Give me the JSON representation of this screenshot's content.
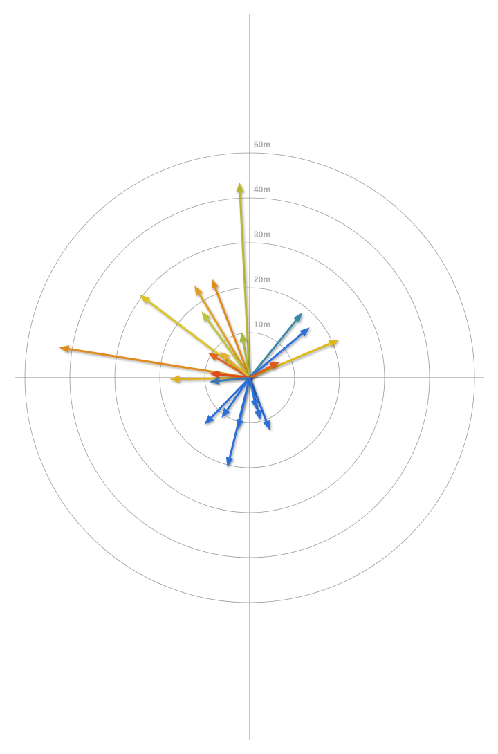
{
  "chart_data": {
    "type": "polar-vector",
    "rlim": [
      0,
      50
    ],
    "rticks": [
      {
        "value": 10,
        "label": "10m"
      },
      {
        "value": 20,
        "label": "20m"
      },
      {
        "value": 30,
        "label": "30m"
      },
      {
        "value": 40,
        "label": "40m"
      },
      {
        "value": 50,
        "label": "50m"
      }
    ],
    "vectors": [
      {
        "angle": 357,
        "distance": 43.5,
        "color": "#b5b82e"
      },
      {
        "angle": 279,
        "distance": 42.9,
        "color": "#e08a1e"
      },
      {
        "angle": 307,
        "distance": 30.6,
        "color": "#d8c428"
      },
      {
        "angle": 329,
        "distance": 23.9,
        "color": "#e0a020"
      },
      {
        "angle": 339,
        "distance": 23.6,
        "color": "#e08a1e"
      },
      {
        "angle": 324,
        "distance": 18.2,
        "color": "#bcc43a"
      },
      {
        "angle": 350,
        "distance": 10.3,
        "color": "#a8b83a"
      },
      {
        "angle": 301,
        "distance": 10.8,
        "color": "#e0661e"
      },
      {
        "angle": 311,
        "distance": 8.8,
        "color": "#e8b030"
      },
      {
        "angle": 269,
        "distance": 17.8,
        "color": "#e0b020"
      },
      {
        "angle": 276,
        "distance": 9,
        "color": "#e0481e"
      },
      {
        "angle": 39,
        "distance": 18.6,
        "color": "#3a88a8"
      },
      {
        "angle": 50,
        "distance": 17.4,
        "color": "#2a70d8"
      },
      {
        "angle": 67,
        "distance": 21.5,
        "color": "#e0b818"
      },
      {
        "angle": 62,
        "distance": 7.6,
        "color": "#e0581e"
      },
      {
        "angle": 264,
        "distance": 9,
        "color": "#3a7ab0"
      },
      {
        "angle": 224,
        "distance": 14.5,
        "color": "#2a70d8"
      },
      {
        "angle": 215,
        "distance": 10.9,
        "color": "#2a70d8"
      },
      {
        "angle": 194,
        "distance": 20.5,
        "color": "#2a70d8"
      },
      {
        "angle": 193,
        "distance": 11.8,
        "color": "#2a70d8"
      },
      {
        "angle": 159,
        "distance": 12.5,
        "color": "#2a70d8"
      },
      {
        "angle": 166,
        "distance": 9.7,
        "color": "#2a70d8"
      },
      {
        "angle": 168,
        "distance": 7.2,
        "color": "#2a70d8"
      }
    ]
  }
}
